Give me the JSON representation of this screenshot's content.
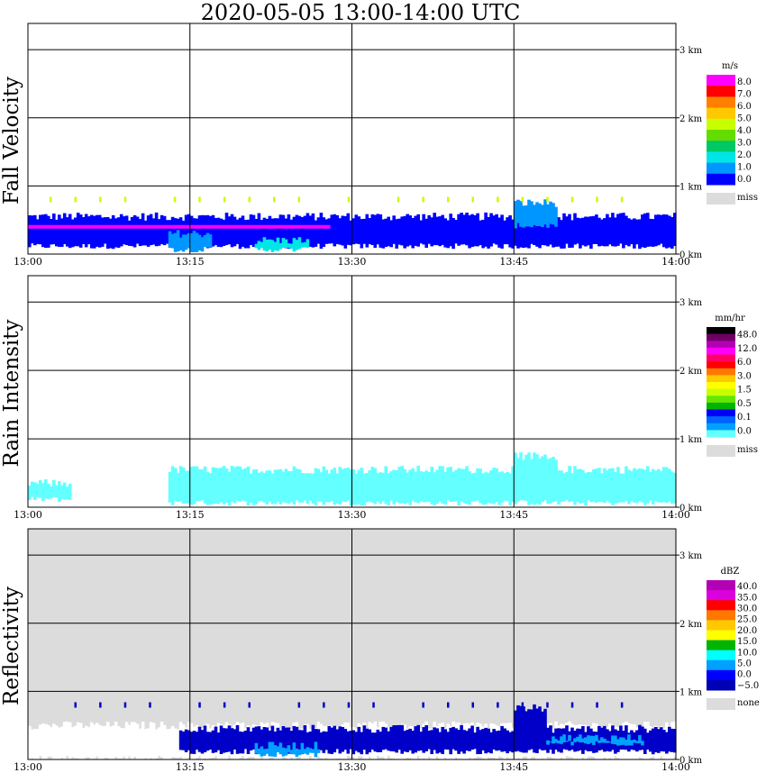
{
  "title": "2020-05-05   13:00-14:00 UTC",
  "time_ticks": [
    "13:00",
    "13:15",
    "13:30",
    "13:45",
    "14:00"
  ],
  "height_ticks": [
    "0 km",
    "1 km",
    "2 km",
    "3 km"
  ],
  "chart_data": [
    {
      "type": "heatmap",
      "ylabel": "Fall Velocity",
      "x_range": [
        "13:00",
        "14:00"
      ],
      "y_range_km": [
        0,
        3.2
      ],
      "grid": true,
      "legend_position": "right",
      "colorbar": {
        "unit": "m/s",
        "labels": [
          "8.0",
          "7.0",
          "6.0",
          "5.0",
          "4.0",
          "3.0",
          "2.0",
          "1.0",
          "0.0"
        ],
        "colors": [
          "#ff00ff",
          "#ff0000",
          "#ff7f00",
          "#ffc800",
          "#c8ff00",
          "#64dc00",
          "#00c864",
          "#00e6e6",
          "#0096ff",
          "#0000ff"
        ],
        "missing_label": "miss",
        "missing_color": "#dcdcdc"
      },
      "background": "#ffffff",
      "features": [
        {
          "kind": "band",
          "color": "#0000ff",
          "start_min": 0,
          "end_min": 60,
          "bottom_km": 0.1,
          "top_km": 0.55
        },
        {
          "kind": "band",
          "color": "#0096ff",
          "start_min": 13,
          "end_min": 17,
          "bottom_km": 0.05,
          "top_km": 0.3
        },
        {
          "kind": "band",
          "color": "#00e6e6",
          "start_min": 21,
          "end_min": 26,
          "bottom_km": 0.05,
          "top_km": 0.2
        },
        {
          "kind": "band",
          "color": "#0096ff",
          "start_min": 45,
          "end_min": 49,
          "bottom_km": 0.4,
          "top_km": 0.75
        },
        {
          "kind": "line",
          "color": "#ff00ff",
          "start_min": 0,
          "end_min": 28,
          "height_km": 0.4
        },
        {
          "kind": "dots",
          "color": "#c8ff00",
          "start_min": 2,
          "end_min": 57,
          "height_km": 0.8
        }
      ]
    },
    {
      "type": "heatmap",
      "ylabel": "Rain Intensity",
      "x_range": [
        "13:00",
        "14:00"
      ],
      "y_range_km": [
        0,
        3.2
      ],
      "grid": true,
      "legend_position": "right",
      "colorbar": {
        "unit": "mm/hr",
        "labels": [
          "48.0",
          "12.0",
          "6.0",
          "3.0",
          "1.5",
          "0.5",
          "0.1",
          "0.0"
        ],
        "colors": [
          "#000000",
          "#6e0064",
          "#b400b4",
          "#ff00ff",
          "#ff0064",
          "#ff0000",
          "#ff7800",
          "#ffc800",
          "#ffff00",
          "#c8ff00",
          "#64e600",
          "#00b400",
          "#0000ff",
          "#0064ff",
          "#00a0ff",
          "#64ffff"
        ],
        "missing_label": "miss",
        "missing_color": "#dcdcdc"
      },
      "background": "#ffffff",
      "features": [
        {
          "kind": "band",
          "color": "#64ffff",
          "start_min": 0,
          "end_min": 4,
          "bottom_km": 0.1,
          "top_km": 0.35
        },
        {
          "kind": "band",
          "color": "#64ffff",
          "start_min": 13,
          "end_min": 60,
          "bottom_km": 0.05,
          "top_km": 0.55
        },
        {
          "kind": "band",
          "color": "#64ffff",
          "start_min": 45,
          "end_min": 49,
          "bottom_km": 0.4,
          "top_km": 0.75
        }
      ]
    },
    {
      "type": "heatmap",
      "ylabel": "Reflectivity",
      "x_range": [
        "13:00",
        "14:00"
      ],
      "y_range_km": [
        0,
        3.2
      ],
      "grid": true,
      "legend_position": "right",
      "colorbar": {
        "unit": "dBZ",
        "labels": [
          "40.0",
          "35.0",
          "30.0",
          "25.0",
          "20.0",
          "15.0",
          "10.0",
          "5.0",
          "0.0",
          "−5.0"
        ],
        "colors": [
          "#b400b4",
          "#dc00dc",
          "#ff0000",
          "#ff7800",
          "#ffc800",
          "#ffff00",
          "#00b400",
          "#00ffff",
          "#00a0ff",
          "#0000ff",
          "#0000b4"
        ],
        "missing_label": "none",
        "missing_color": "#dcdcdc"
      },
      "background": "#dcdcdc",
      "features": [
        {
          "kind": "band",
          "color": "#ffffff",
          "start_min": 0,
          "end_min": 60,
          "bottom_km": 0.0,
          "top_km": 0.5
        },
        {
          "kind": "band",
          "color": "#0000c8",
          "start_min": 14,
          "end_min": 60,
          "bottom_km": 0.1,
          "top_km": 0.45
        },
        {
          "kind": "band",
          "color": "#00a0ff",
          "start_min": 21,
          "end_min": 27,
          "bottom_km": 0.05,
          "top_km": 0.2
        },
        {
          "kind": "band",
          "color": "#00a0ff",
          "start_min": 48,
          "end_min": 57,
          "bottom_km": 0.22,
          "top_km": 0.32
        },
        {
          "kind": "band",
          "color": "#0000c8",
          "start_min": 45,
          "end_min": 48,
          "bottom_km": 0.3,
          "top_km": 0.75
        },
        {
          "kind": "dots",
          "color": "#0000c8",
          "start_min": 2,
          "end_min": 57,
          "height_km": 0.8
        }
      ]
    }
  ]
}
